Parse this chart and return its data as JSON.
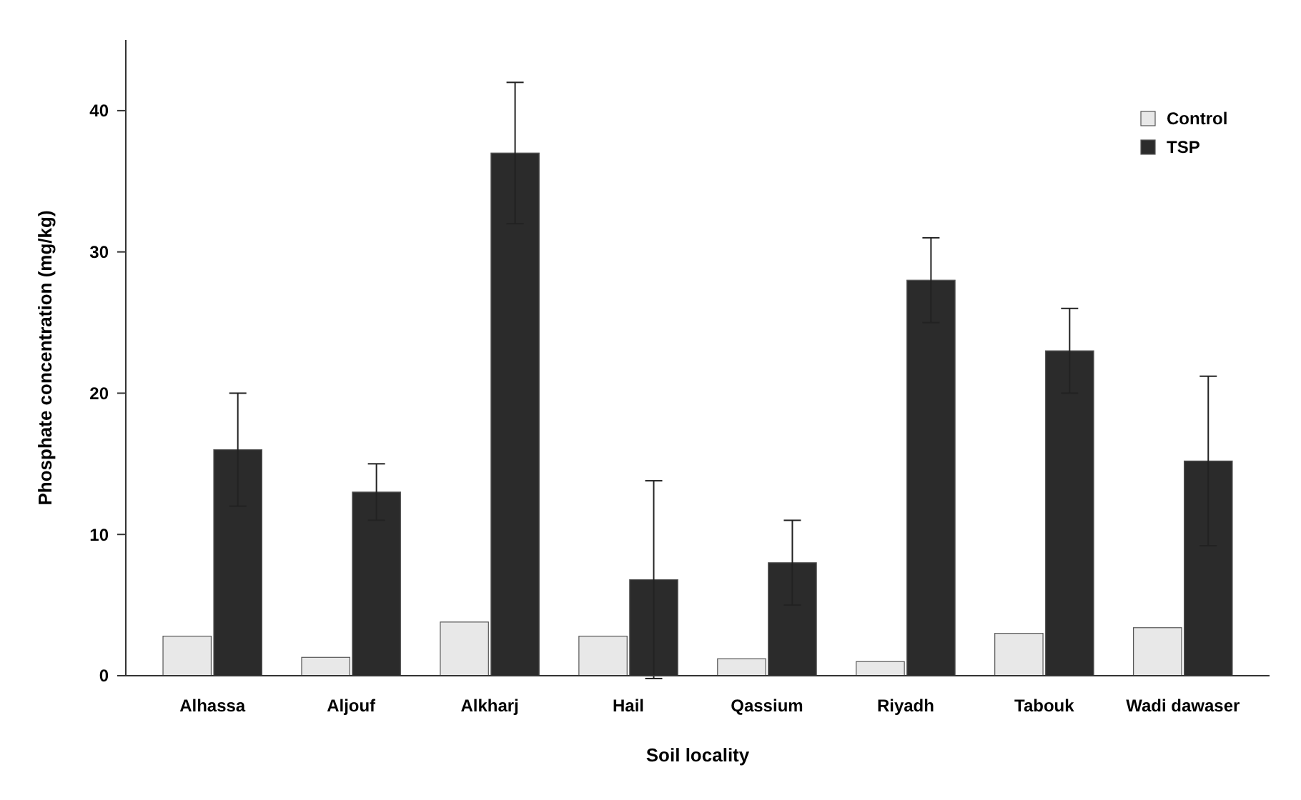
{
  "chart_data": {
    "type": "bar",
    "xlabel": "Soil locality",
    "ylabel": "Phosphate concentration (mg/kg)",
    "categories": [
      "Alhassa",
      "Aljouf",
      "Alkharj",
      "Hail",
      "Qassium",
      "Riyadh",
      "Tabouk",
      "Wadi dawaser"
    ],
    "series": [
      {
        "name": "Control",
        "color": "#e8e8e8",
        "values": [
          2.8,
          1.3,
          3.8,
          2.8,
          1.2,
          1,
          3,
          3.4
        ]
      },
      {
        "name": "TSP",
        "color": "#2b2b2b",
        "values": [
          16,
          13,
          37,
          6.8,
          8,
          28,
          23,
          15.2
        ],
        "errors": [
          4,
          2,
          5,
          7,
          3,
          3,
          3,
          6
        ]
      }
    ],
    "ylim": [
      0,
      45
    ],
    "yticks": [
      0,
      10,
      20,
      30,
      40
    ],
    "legend": "top right"
  }
}
